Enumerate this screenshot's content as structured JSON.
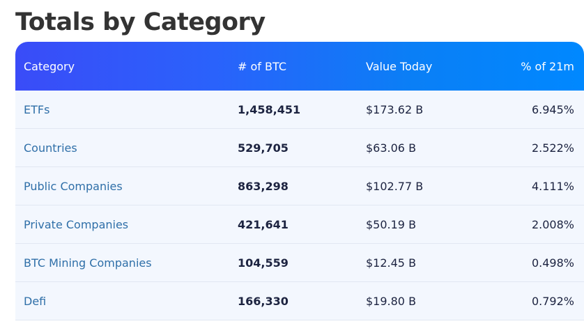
{
  "title": "Totals by Category",
  "table": {
    "headers": [
      "Category",
      "# of BTC",
      "Value Today",
      "% of 21m"
    ],
    "rows": [
      {
        "category": "ETFs",
        "btc": "1,458,451",
        "value": "$173.62 B",
        "percent": "6.945%"
      },
      {
        "category": "Countries",
        "btc": "529,705",
        "value": "$63.06 B",
        "percent": "2.522%"
      },
      {
        "category": "Public Companies",
        "btc": "863,298",
        "value": "$102.77 B",
        "percent": "4.111%"
      },
      {
        "category": "Private Companies",
        "btc": "421,641",
        "value": "$50.19 B",
        "percent": "2.008%"
      },
      {
        "category": "BTC Mining Companies",
        "btc": "104,559",
        "value": "$12.45 B",
        "percent": "0.498%"
      },
      {
        "category": "Defi",
        "btc": "166,330",
        "value": "$19.80 B",
        "percent": "0.792%"
      }
    ]
  },
  "colors": {
    "header_gradient_start": "#3a4cf8",
    "header_gradient_end": "#0088ff",
    "link": "#2f6fa8",
    "row_background": "#f3f7fe"
  }
}
